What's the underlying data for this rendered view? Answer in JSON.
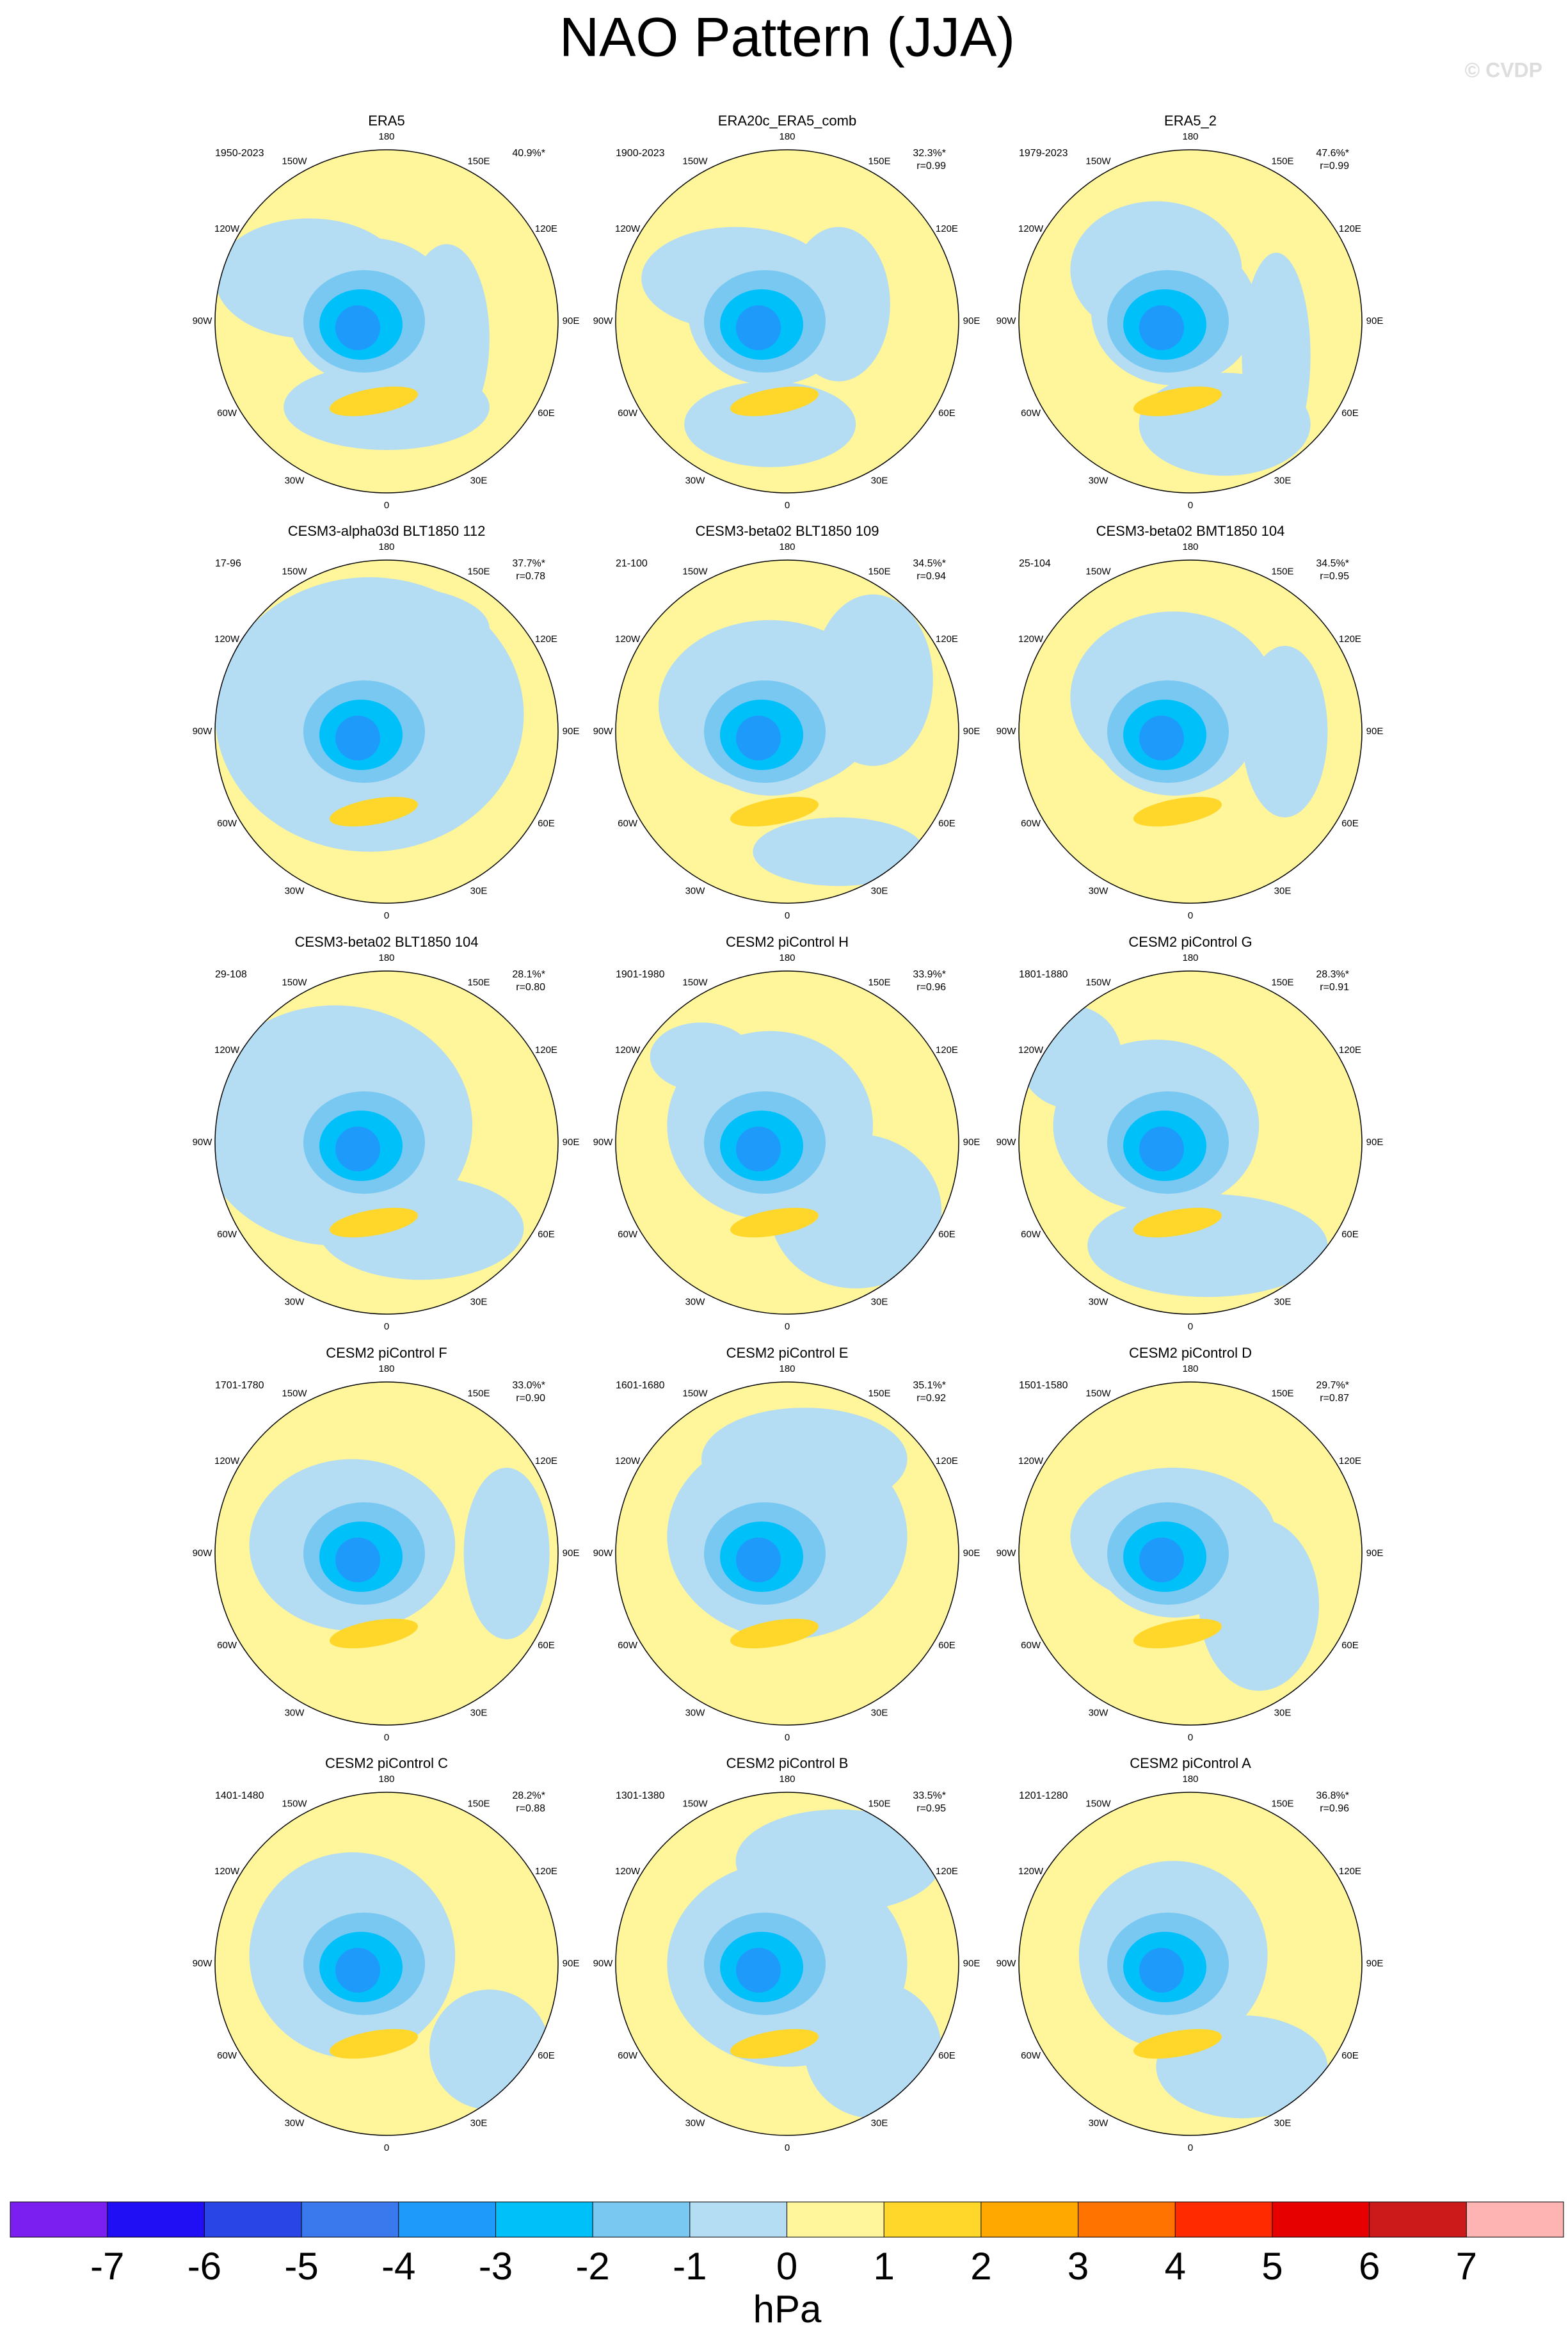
{
  "title": "NAO Pattern (JJA)",
  "watermark": "© CVDP",
  "lon_labels": [
    "180",
    "150E",
    "120E",
    "90E",
    "60E",
    "30E",
    "0",
    "30W",
    "60W",
    "90W",
    "120W",
    "150W"
  ],
  "panels": [
    {
      "title": "ERA5",
      "period": "1950-2023",
      "variance": "40.9%*"
    },
    {
      "title": "ERA20c_ERA5_comb",
      "period": "1900-2023",
      "variance": "32.3%*",
      "r": "r=0.99"
    },
    {
      "title": "ERA5_2",
      "period": "1979-2023",
      "variance": "47.6%*",
      "r": "r=0.99"
    },
    {
      "title": "CESM3-alpha03d BLT1850 112",
      "period": "17-96",
      "variance": "37.7%*",
      "r": "r=0.78"
    },
    {
      "title": "CESM3-beta02 BLT1850 109",
      "period": "21-100",
      "variance": "34.5%*",
      "r": "r=0.94"
    },
    {
      "title": "CESM3-beta02 BMT1850 104",
      "period": "25-104",
      "variance": "34.5%*",
      "r": "r=0.95"
    },
    {
      "title": "CESM3-beta02 BLT1850 104",
      "period": "29-108",
      "variance": "28.1%*",
      "r": "r=0.80"
    },
    {
      "title": "CESM2 piControl H",
      "period": "1901-1980",
      "variance": "33.9%*",
      "r": "r=0.96"
    },
    {
      "title": "CESM2 piControl G",
      "period": "1801-1880",
      "variance": "28.3%*",
      "r": "r=0.91"
    },
    {
      "title": "CESM2 piControl F",
      "period": "1701-1780",
      "variance": "33.0%*",
      "r": "r=0.90"
    },
    {
      "title": "CESM2 piControl E",
      "period": "1601-1680",
      "variance": "35.1%*",
      "r": "r=0.92"
    },
    {
      "title": "CESM2 piControl D",
      "period": "1501-1580",
      "variance": "29.7%*",
      "r": "r=0.87"
    },
    {
      "title": "CESM2 piControl C",
      "period": "1401-1480",
      "variance": "28.2%*",
      "r": "r=0.88"
    },
    {
      "title": "CESM2 piControl B",
      "period": "1301-1380",
      "variance": "33.5%*",
      "r": "r=0.95"
    },
    {
      "title": "CESM2 piControl A",
      "period": "1201-1280",
      "variance": "36.8%*",
      "r": "r=0.96"
    }
  ],
  "colorbar": {
    "levels": [
      -7,
      -6,
      -5,
      -4,
      -3,
      -2,
      -1,
      0,
      1,
      2,
      3,
      4,
      5,
      6,
      7
    ],
    "colors": [
      "#7b1ff0",
      "#200ef5",
      "#2a45e6",
      "#3a78ee",
      "#1e9bfa",
      "#00c0fa",
      "#78c8f2",
      "#b4dcf2",
      "#fff59a",
      "#ffd62a",
      "#ffa800",
      "#ff7400",
      "#ff2a00",
      "#e60000",
      "#cc1a1a",
      "#ffb4b4"
    ],
    "unit": "hPa"
  }
}
